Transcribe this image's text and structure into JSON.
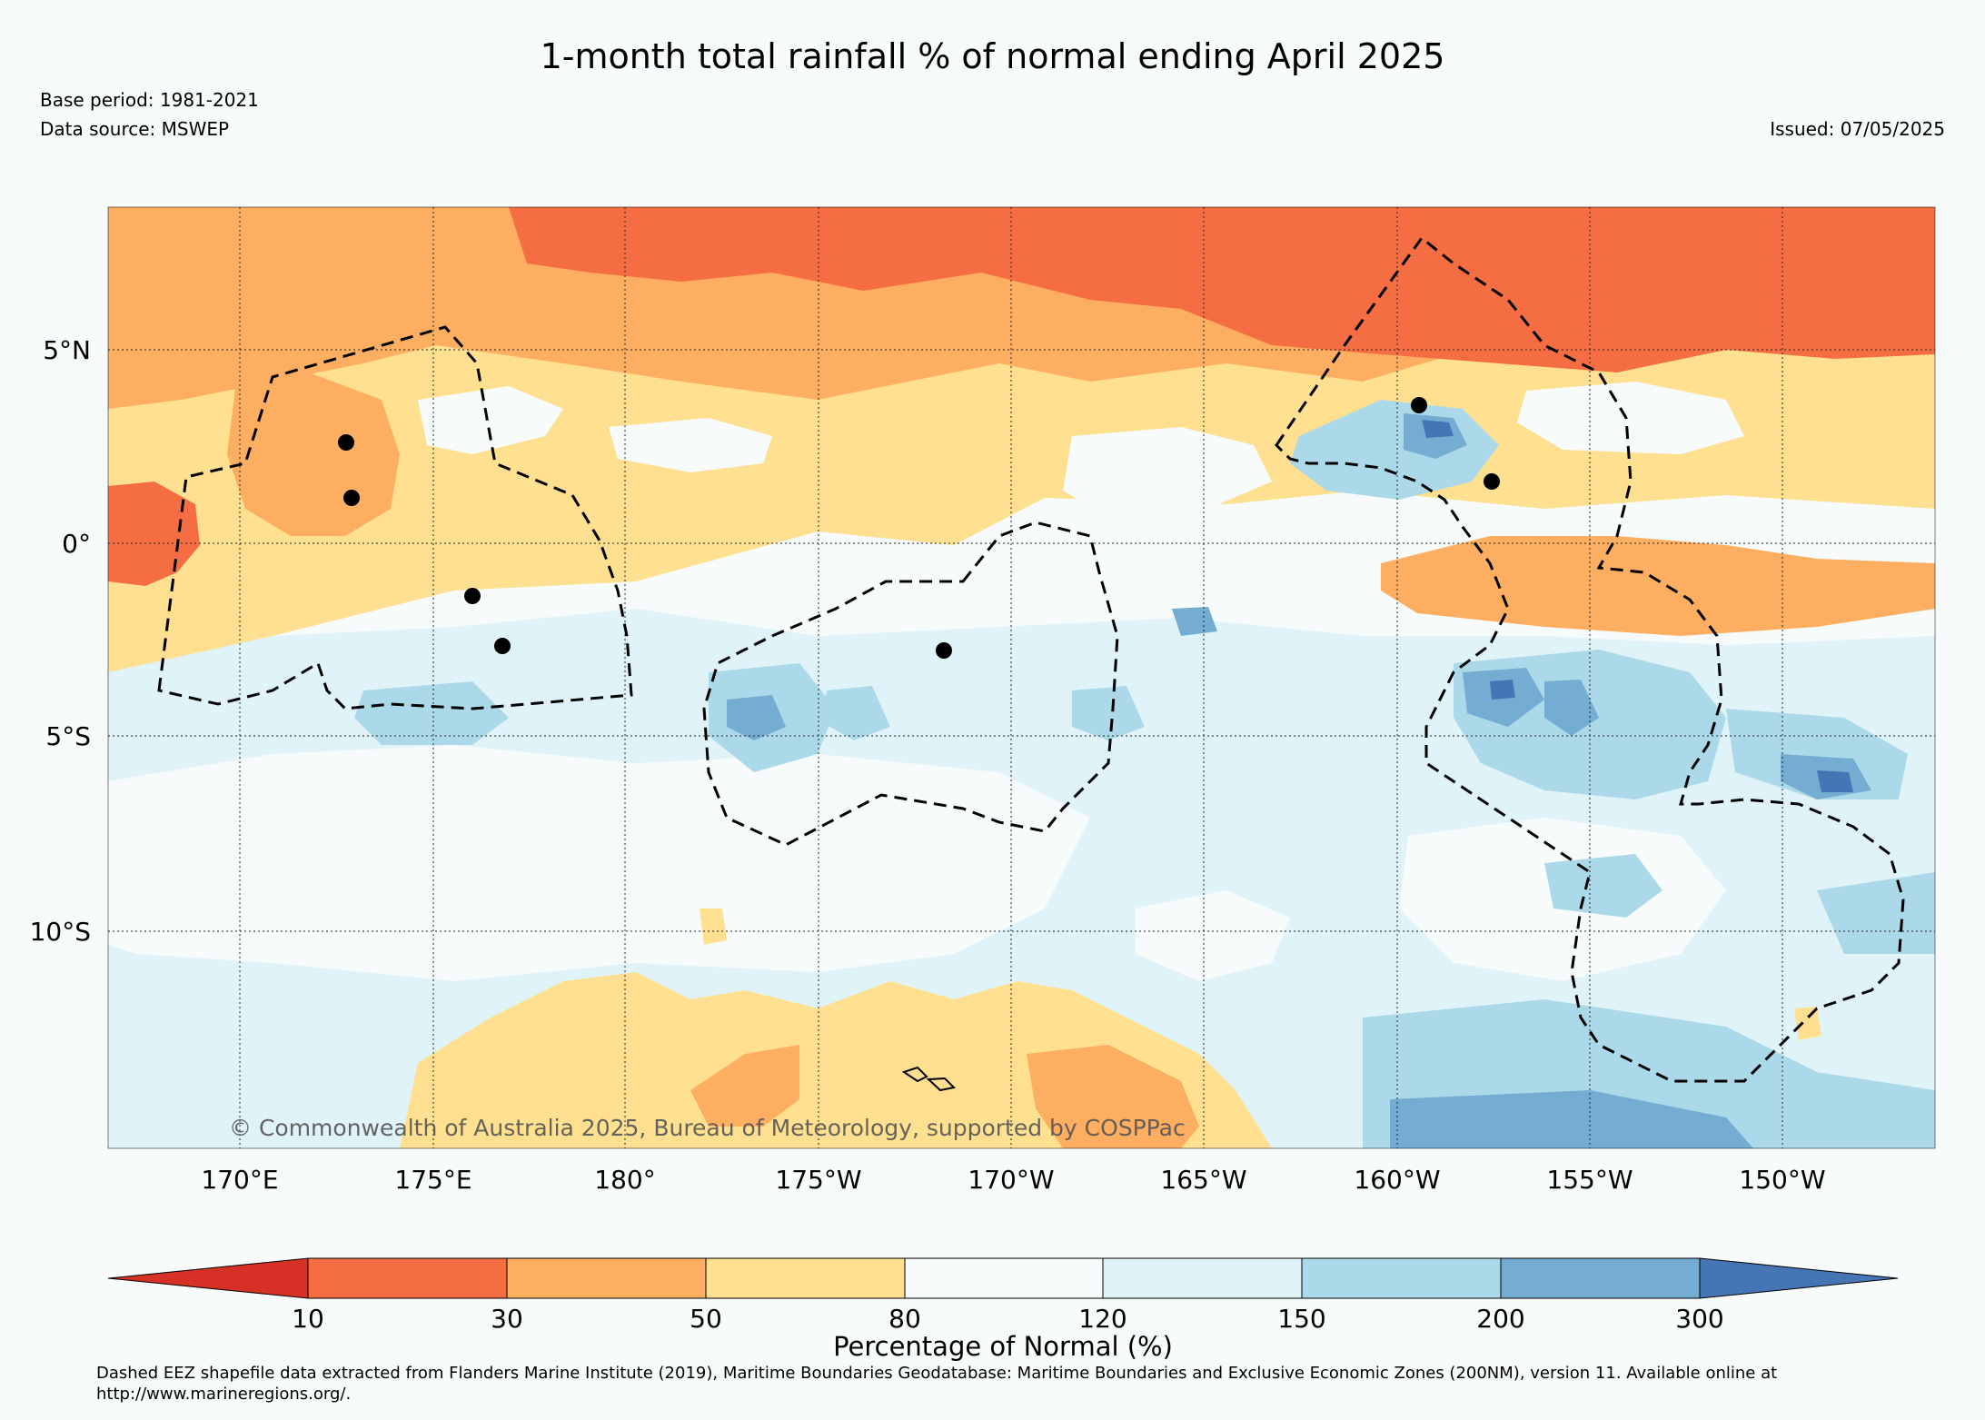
{
  "header": {
    "title": "1-month total rainfall % of normal ending April 2025",
    "base_period": "Base period: 1981-2021",
    "data_source": "Data source: MSWEP",
    "issued": "Issued: 07/05/2025"
  },
  "map": {
    "lon_labels": [
      "170°E",
      "175°E",
      "180°",
      "175°W",
      "170°W",
      "165°W",
      "160°W",
      "155°W",
      "150°W"
    ],
    "lat_labels": [
      "5°N",
      "0°",
      "5°S",
      "10°S"
    ],
    "copyright": "© Commonwealth of Australia 2025, Bureau of Meteorology, supported by COSPPac"
  },
  "legend": {
    "title": "Percentage of Normal (%)",
    "ticks": [
      "10",
      "30",
      "50",
      "80",
      "120",
      "150",
      "200",
      "300"
    ],
    "colors": [
      "#d73027",
      "#f46d43",
      "#fdae61",
      "#fee090",
      "#f7fbfc",
      "#e0f3f8",
      "#abd9e9",
      "#74add1",
      "#4575b4"
    ]
  },
  "footnote": "Dashed EEZ shapefile data extracted from Flanders Marine Institute (2019), Maritime Boundaries Geodatabase: Maritime Boundaries and Exclusive Economic Zones (200NM), version 11. Available online at http://www.marineregions.org/."
}
